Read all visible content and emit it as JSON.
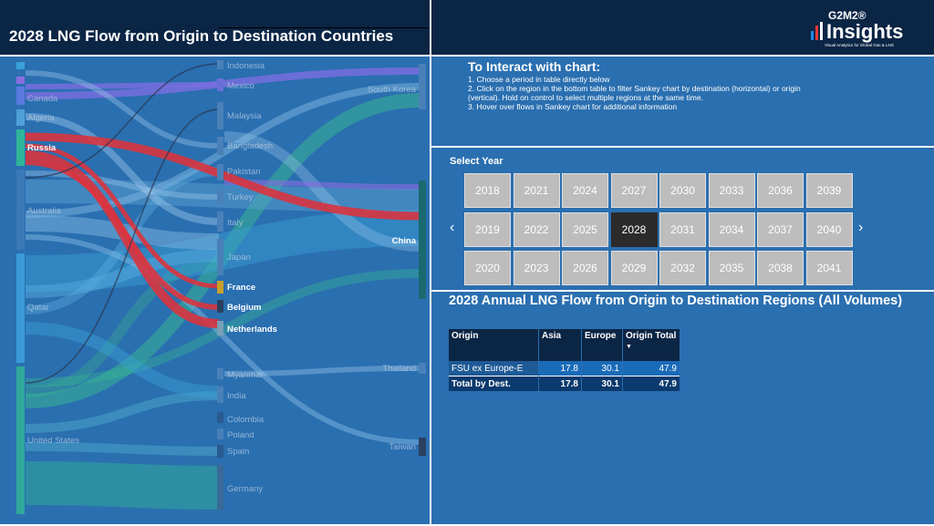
{
  "header": {
    "title": "2028 LNG Flow from Origin to Destination Countries",
    "logo_brand": "G2M2®",
    "logo_name": "Insights",
    "logo_tagline": "Visual Analytics for Global Gas & LNG"
  },
  "sankey": {
    "origins": [
      "Canada",
      "Algeria",
      "Russia",
      "Australia",
      "Qatar",
      "United States"
    ],
    "middle": [
      "Indonesia",
      "Mexico",
      "Malaysia",
      "Bangladesh",
      "Pakistan",
      "Turkey",
      "Italy",
      "Japan",
      "France",
      "Belgium",
      "Netherlands",
      "Myanmar",
      "India",
      "Colombia",
      "Poland",
      "Spain",
      "Germany"
    ],
    "right": [
      "South Korea",
      "China",
      "Thailand",
      "Taiwan"
    ]
  },
  "instructions": {
    "title": "To Interact with chart:",
    "lines": [
      "1. Choose a period in table directly below",
      "2. Click on the region in the bottom table to filter Sankey chart by destination (horizontal) or origin",
      "(vertical). Hold on control to select multiple regions at the same time.",
      "3. Hover over flows in Sankey chart for additional information"
    ]
  },
  "year_selector": {
    "label": "Select Year",
    "selected": "2028",
    "years": [
      "2018",
      "2021",
      "2024",
      "2027",
      "2030",
      "2033",
      "2036",
      "2039",
      "2019",
      "2022",
      "2025",
      "2028",
      "2031",
      "2034",
      "2037",
      "2040",
      "2020",
      "2023",
      "2026",
      "2029",
      "2032",
      "2035",
      "2038",
      "2041"
    ],
    "prev_label": "‹",
    "next_label": "›"
  },
  "flow_table": {
    "title": "2028 Annual LNG Flow from Origin to Destination Regions (All Volumes)",
    "headers": [
      "Origin",
      "Asia",
      "Europe",
      "Origin Total"
    ],
    "sort_icon": "▼",
    "rows": [
      [
        "FSU ex Europe-E",
        "17.8",
        "30.1",
        "47.9"
      ],
      [
        "Total by Dest.",
        "17.8",
        "30.1",
        "47.9"
      ]
    ]
  },
  "colors": {
    "background": "#2a6fb0",
    "header": "#0b2545",
    "russia_flow": "#d9343e",
    "selected_year": "#2b2b2b"
  }
}
